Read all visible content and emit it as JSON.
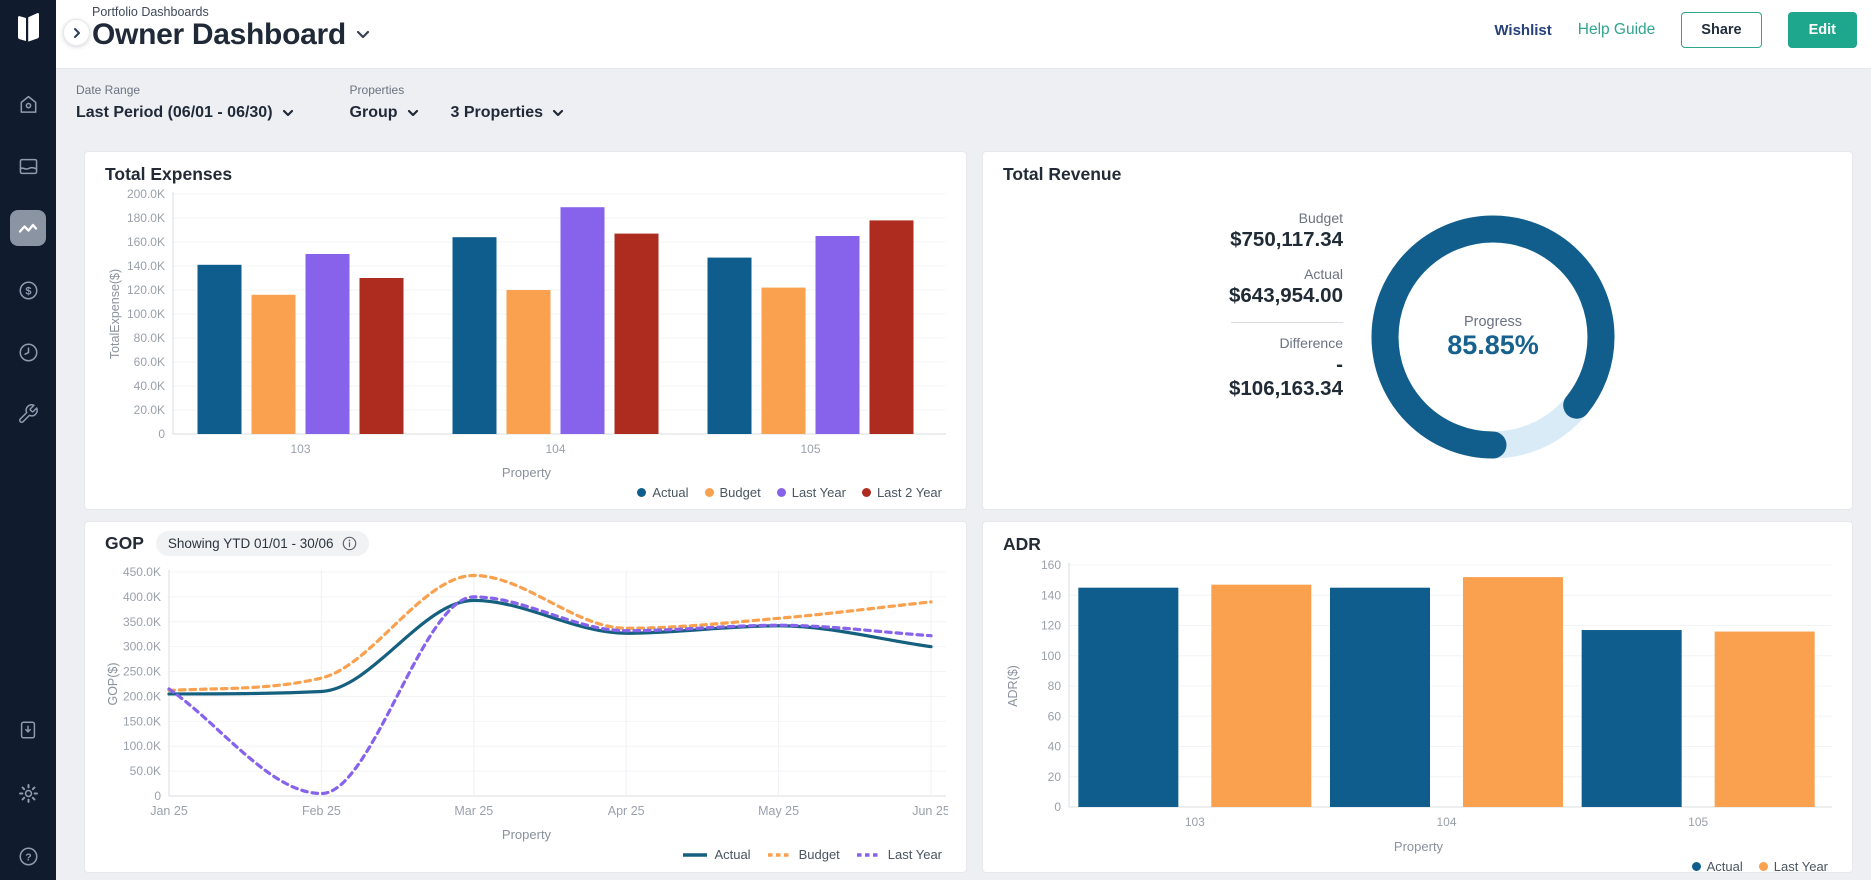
{
  "app": {
    "breadcrumb": "Portfolio Dashboards",
    "title": "Owner Dashboard",
    "actions": {
      "wishlist": "Wishlist",
      "help_guide": "Help Guide",
      "share": "Share",
      "edit": "Edit"
    }
  },
  "sidebar": {
    "icons": [
      "logo",
      "home",
      "dashboard",
      "analytics",
      "finance",
      "history",
      "tools",
      "import",
      "settings",
      "help"
    ],
    "active_icon": "analytics"
  },
  "filters": {
    "date_range_label": "Date Range",
    "date_range_value": "Last Period (06/01 - 06/30)",
    "properties_label": "Properties",
    "group_value": "Group",
    "properties_value": "3 Properties"
  },
  "colors": {
    "actual": "#0E5D8C",
    "budget": "#F9A14F",
    "last_year": "#8763EC",
    "last_2_year": "#AE2B20",
    "teal": "#1EA78C",
    "sidebar_bg": "#101B2E",
    "progress_arc": "#115E8C",
    "progress_track": "#D9EBF7"
  },
  "panels": {
    "total_expenses": {
      "title": "Total Expenses",
      "chart_data": {
        "type": "bar",
        "categories": [
          "103",
          "104",
          "105"
        ],
        "series": [
          {
            "name": "Actual",
            "color": "#0E5D8C",
            "values": [
              141000,
              164000,
              147000
            ]
          },
          {
            "name": "Budget",
            "color": "#F9A14F",
            "values": [
              116000,
              120000,
              122000
            ]
          },
          {
            "name": "Last Year",
            "color": "#8763EC",
            "values": [
              150000,
              189000,
              165000
            ]
          },
          {
            "name": "Last 2 Year",
            "color": "#AE2B20",
            "values": [
              130000,
              167000,
              178000
            ]
          }
        ],
        "ylim": [
          0,
          200000
        ],
        "ytick_values": [
          0,
          20000,
          40000,
          60000,
          80000,
          100000,
          120000,
          140000,
          160000,
          180000,
          200000
        ],
        "ytick_labels": [
          "0",
          "20.0K",
          "40.0K",
          "60.0K",
          "80.0K",
          "100.0K",
          "120.0K",
          "140.0K",
          "160.0K",
          "180.0K",
          "200.0K"
        ],
        "ylabel": "TotalExpense($)",
        "xlabel": "Property",
        "legend_position": "bottom-right"
      }
    },
    "total_revenue": {
      "title": "Total Revenue",
      "budget_label": "Budget",
      "budget_value": "$750,117.34",
      "actual_label": "Actual",
      "actual_value": "$643,954.00",
      "difference_label": "Difference",
      "difference_minus": "-",
      "difference_value": "$106,163.34",
      "progress_label": "Progress",
      "progress_value": "85.85%",
      "progress_pct": 85.85
    },
    "gop": {
      "title": "GOP",
      "badge": "Showing YTD 01/01 - 30/06",
      "chart_data": {
        "type": "line",
        "x": [
          "Jan 25",
          "Feb 25",
          "Mar 25",
          "Apr 25",
          "May 25",
          "Jun 25"
        ],
        "series": [
          {
            "name": "Actual",
            "color": "#15607F",
            "style": "solid",
            "values": [
              205000,
              210000,
              393000,
              327000,
              342000,
              300000
            ]
          },
          {
            "name": "Budget",
            "color": "#F9A14F",
            "style": "dashed",
            "values": [
              212000,
              237000,
              443000,
              337000,
              357000,
              390000
            ]
          },
          {
            "name": "Last Year",
            "color": "#8763EC",
            "style": "dashed",
            "values": [
              215000,
              5000,
              400000,
              332000,
              343000,
              322000
            ]
          }
        ],
        "ylim": [
          0,
          450000
        ],
        "ytick_values": [
          0,
          50000,
          100000,
          150000,
          200000,
          250000,
          300000,
          350000,
          400000,
          450000
        ],
        "ytick_labels": [
          "0",
          "50.0K",
          "100.0K",
          "150.0K",
          "200.0K",
          "250.0K",
          "300.0K",
          "350.0K",
          "400.0K",
          "450.0K"
        ],
        "ylabel": "GOP($)",
        "xlabel": "Property",
        "legend_position": "bottom-right"
      }
    },
    "adr": {
      "title": "ADR",
      "chart_data": {
        "type": "bar",
        "categories": [
          "103",
          "104",
          "105"
        ],
        "series": [
          {
            "name": "Actual",
            "color": "#0E5D8C",
            "values": [
              145,
              145,
              117
            ]
          },
          {
            "name": "Last Year",
            "color": "#F9A14F",
            "values": [
              147,
              152,
              116
            ]
          }
        ],
        "ylim": [
          0,
          160
        ],
        "ytick_values": [
          0,
          20,
          40,
          60,
          80,
          100,
          120,
          140,
          160
        ],
        "ytick_labels": [
          "0",
          "20",
          "40",
          "60",
          "80",
          "100",
          "120",
          "140",
          "160"
        ],
        "ylabel": "ADR($)",
        "xlabel": "Property",
        "legend_position": "bottom-right"
      }
    }
  }
}
